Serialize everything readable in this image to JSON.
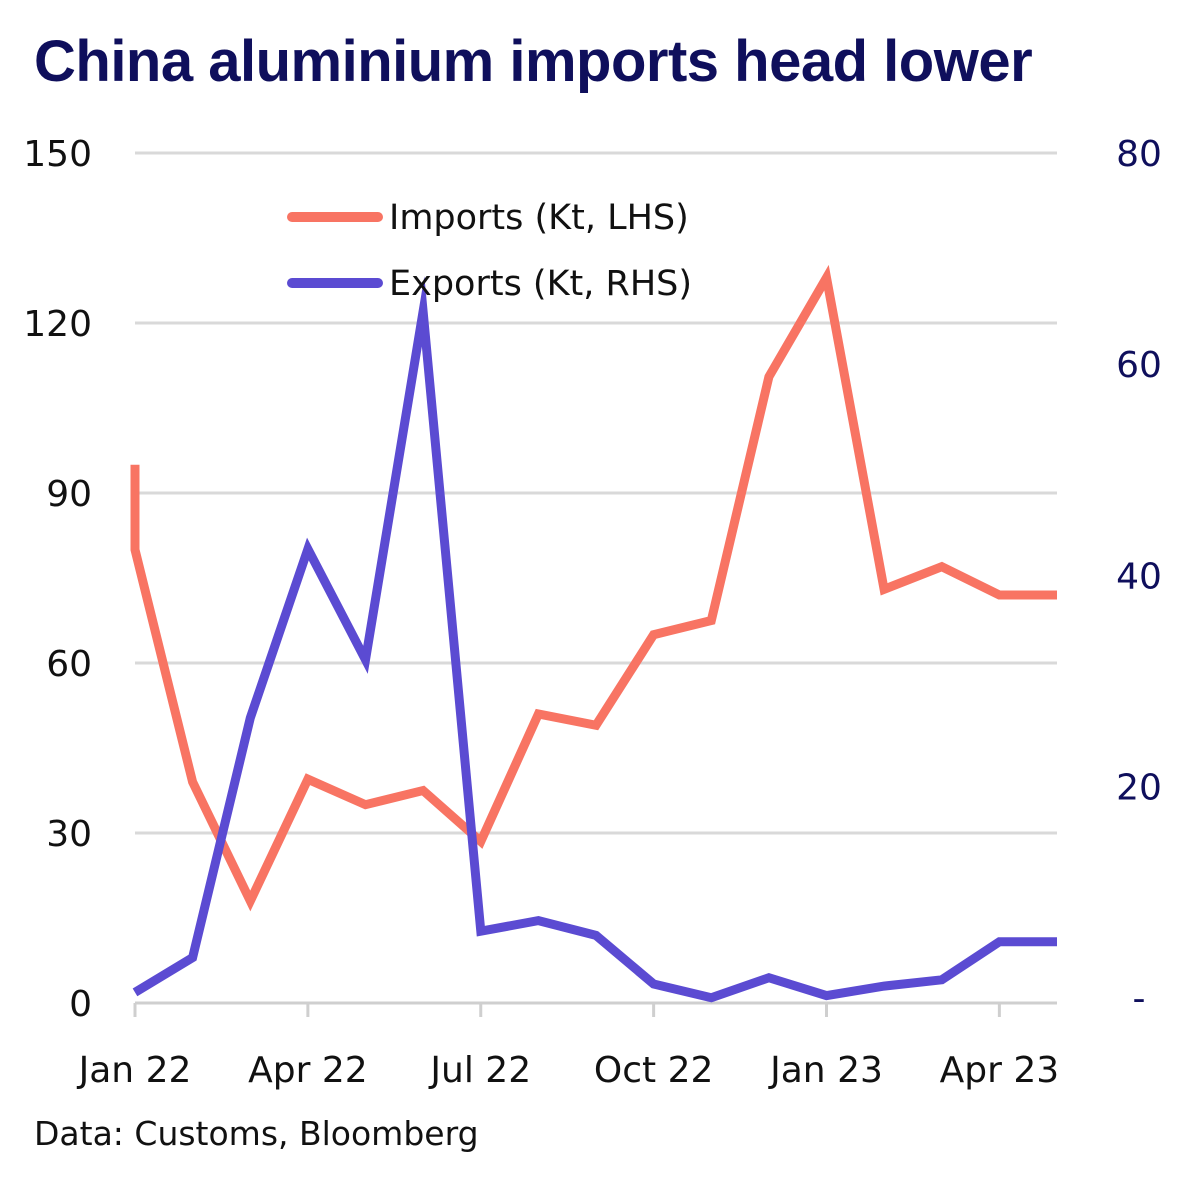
{
  "title": "China aluminium imports head lower",
  "source": "Data: Customs, Bloomberg",
  "colors": {
    "imports": "#f87463",
    "exports": "#5b4bd2",
    "grid": "#d9d9d9",
    "title": "#0f0f5c"
  },
  "chart_data": {
    "type": "line",
    "title": "China aluminium imports head lower",
    "x": [
      "Jan 22",
      "Feb 22",
      "Mar 22",
      "Apr 22",
      "May 22",
      "Jun 22",
      "Jul 22",
      "Aug 22",
      "Sep 22",
      "Oct 22",
      "Nov 22",
      "Dec 22",
      "Jan 23",
      "Feb 23",
      "Mar 23",
      "Apr 23",
      "May 23"
    ],
    "x_tick_labels": [
      "Jan 22",
      "Apr 22",
      "Jul 22",
      "Oct 22",
      "Jan 23",
      "Apr 23"
    ],
    "y_left": {
      "ylim": [
        0,
        150
      ],
      "ticks": [
        "0",
        "30",
        "60",
        "90",
        "120",
        "150"
      ]
    },
    "y_right": {
      "ylim": [
        -0.5,
        80
      ],
      "ticks": [
        "-",
        "20",
        "40",
        "60",
        "80"
      ]
    },
    "grid": true,
    "legend_position": "top-center",
    "series": [
      {
        "name": "Imports (Kt, LHS)",
        "axis": "left",
        "start_value": 95,
        "values": [
          80,
          39,
          18,
          39.5,
          35,
          37.5,
          28.5,
          51,
          49,
          65,
          67.5,
          110.5,
          128,
          73,
          77,
          72,
          72
        ]
      },
      {
        "name": "Exports (Kt, RHS)",
        "axis": "right",
        "values": [
          0.5,
          3.8,
          26.5,
          42.5,
          32,
          65,
          6.3,
          7.3,
          5.9,
          1.3,
          0,
          1.9,
          0.2,
          1.1,
          1.7,
          5.3,
          5.3
        ]
      }
    ]
  }
}
